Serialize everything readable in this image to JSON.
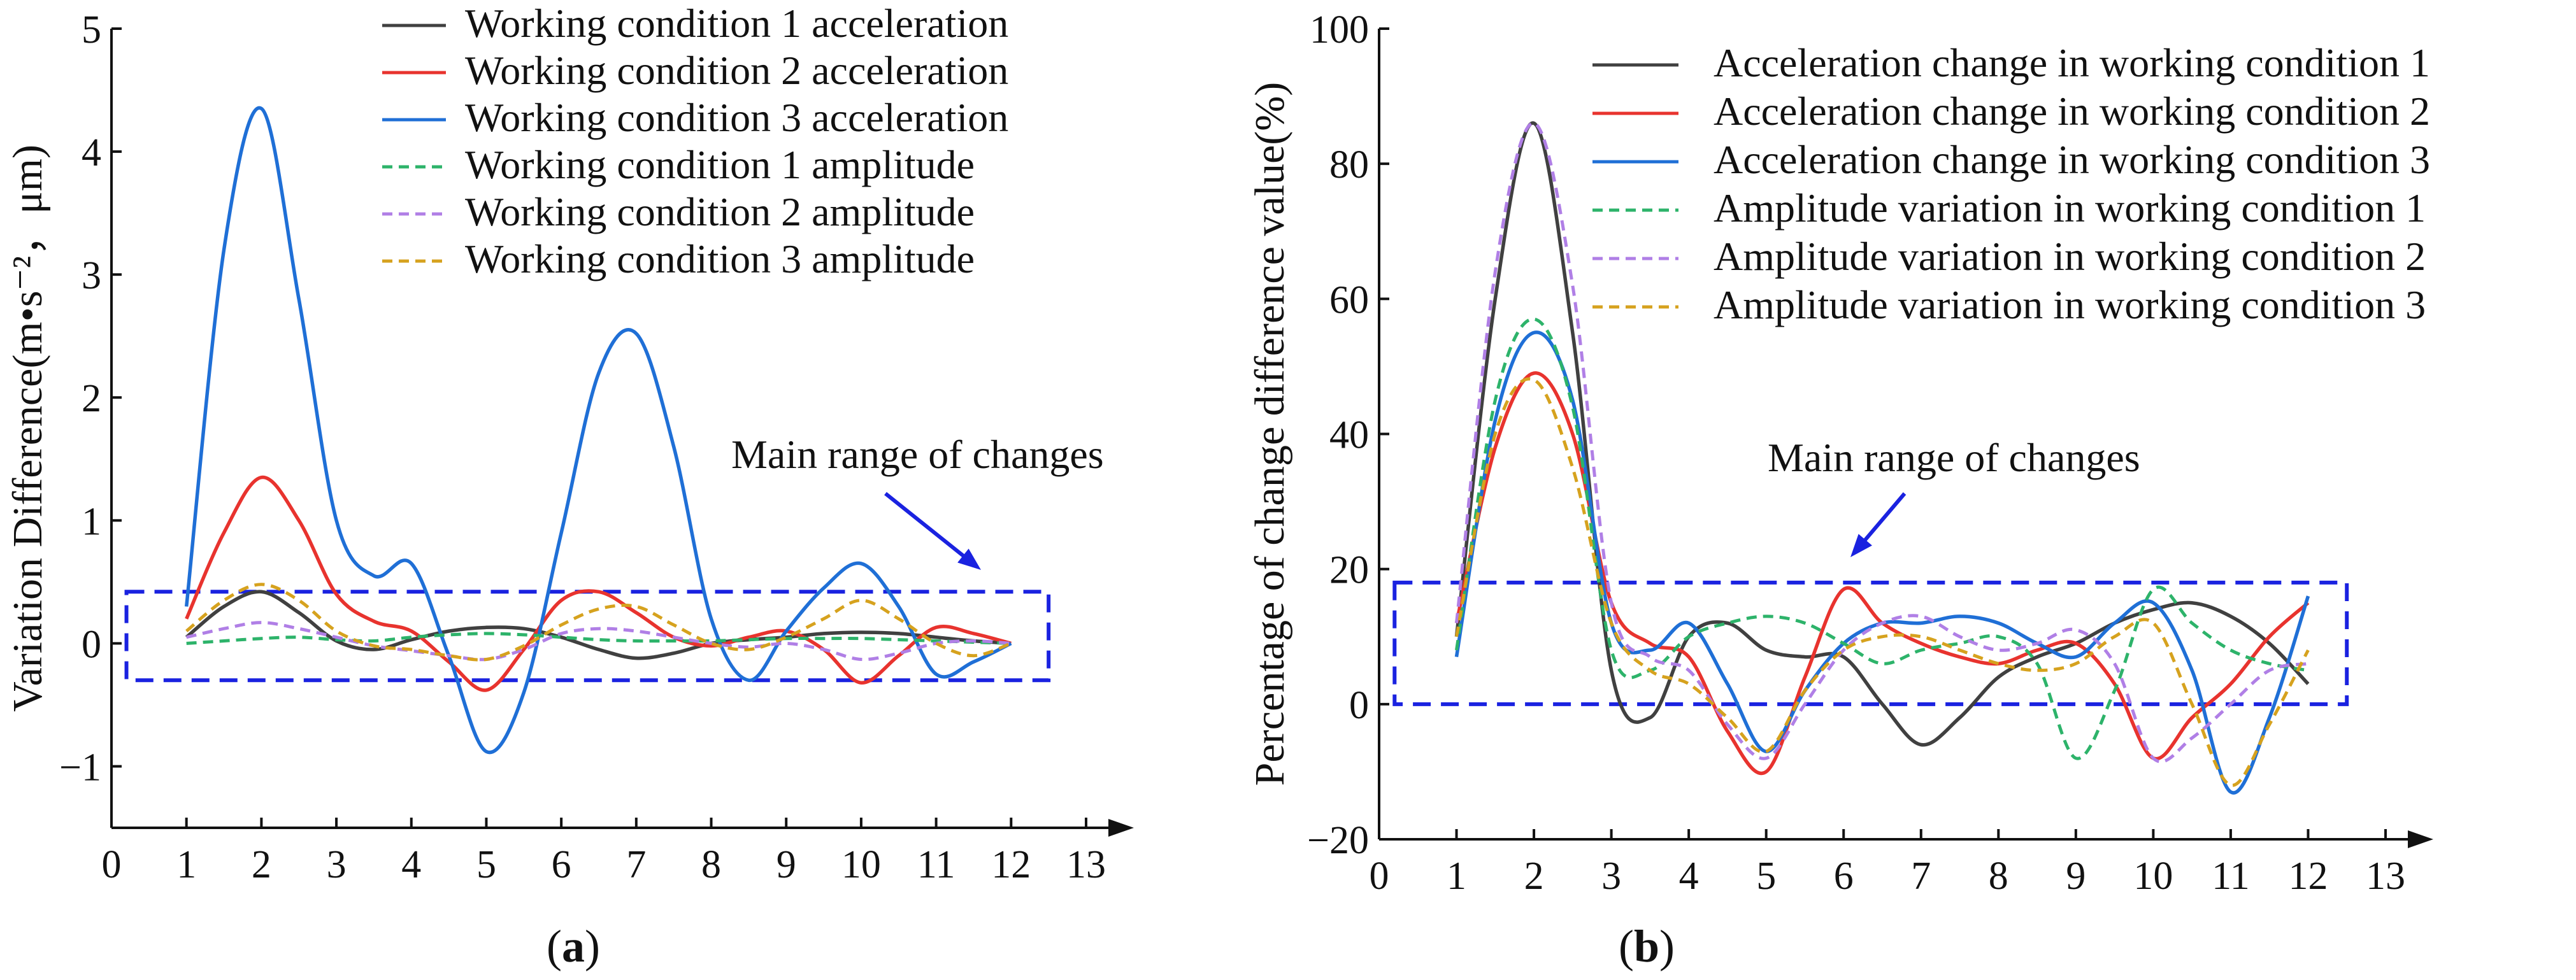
{
  "chart_data": [
    {
      "type": "line",
      "panel_label": "a",
      "ylabel": "Variation Difference(m•s⁻²，μm)",
      "xlabel": "",
      "xlim": [
        0,
        13
      ],
      "ylim": [
        -1.5,
        5
      ],
      "x_ticks": [
        0,
        1,
        2,
        3,
        4,
        5,
        6,
        7,
        8,
        9,
        10,
        11,
        12,
        13
      ],
      "y_ticks": [
        -1,
        0,
        1,
        2,
        3,
        4,
        5
      ],
      "x": [
        1,
        1.5,
        2,
        2.5,
        3,
        3.5,
        4,
        4.5,
        5,
        5.5,
        6,
        6.5,
        7,
        7.5,
        8,
        8.5,
        9,
        9.5,
        10,
        10.5,
        11,
        11.5,
        12
      ],
      "series": [
        {
          "name": "Working condition 1 acceleration",
          "color": "#404040",
          "dash": "solid",
          "values": [
            0.05,
            0.3,
            0.42,
            0.25,
            0.02,
            -0.05,
            0.03,
            0.1,
            0.13,
            0.12,
            0.05,
            -0.05,
            -0.12,
            -0.08,
            0,
            0.03,
            0.05,
            0.08,
            0.09,
            0.08,
            0.05,
            0.02,
            0.0
          ]
        },
        {
          "name": "Working condition 2 acceleration",
          "color": "#e8332e",
          "dash": "solid",
          "values": [
            0.2,
            0.9,
            1.35,
            1.0,
            0.4,
            0.18,
            0.1,
            -0.15,
            -0.38,
            -0.05,
            0.35,
            0.42,
            0.25,
            0.05,
            -0.02,
            0.05,
            0.1,
            -0.05,
            -0.32,
            -0.1,
            0.13,
            0.08,
            0.0
          ]
        },
        {
          "name": "Working condition 3 acceleration",
          "color": "#1f6fd6",
          "dash": "solid",
          "values": [
            0.3,
            3.2,
            4.35,
            2.8,
            1.0,
            0.55,
            0.65,
            -0.1,
            -0.88,
            -0.4,
            0.9,
            2.2,
            2.52,
            1.6,
            0.2,
            -0.3,
            0.1,
            0.45,
            0.65,
            0.3,
            -0.25,
            -0.15,
            0.0
          ]
        },
        {
          "name": "Working condition 1 amplitude",
          "color": "#2db36a",
          "dash": "dashed",
          "values": [
            0.0,
            0.02,
            0.04,
            0.05,
            0.03,
            0.02,
            0.05,
            0.07,
            0.08,
            0.07,
            0.05,
            0.03,
            0.02,
            0.02,
            0.02,
            0.03,
            0.04,
            0.04,
            0.04,
            0.03,
            0.02,
            0.01,
            0.0
          ]
        },
        {
          "name": "Working condition 2 amplitude",
          "color": "#b07fe6",
          "dash": "dashed",
          "values": [
            0.05,
            0.12,
            0.17,
            0.12,
            0.05,
            -0.02,
            -0.06,
            -0.1,
            -0.13,
            -0.05,
            0.08,
            0.12,
            0.1,
            0.05,
            0.0,
            -0.03,
            0.0,
            -0.05,
            -0.13,
            -0.08,
            0.0,
            0.02,
            0.0
          ]
        },
        {
          "name": "Working condition 3 amplitude",
          "color": "#d6a21e",
          "dash": "dashed",
          "values": [
            0.1,
            0.35,
            0.48,
            0.35,
            0.1,
            -0.02,
            -0.05,
            -0.1,
            -0.13,
            -0.02,
            0.15,
            0.28,
            0.3,
            0.15,
            0.0,
            -0.05,
            0.05,
            0.2,
            0.35,
            0.2,
            0.0,
            -0.1,
            0.0
          ]
        }
      ],
      "annotation": {
        "text": "Main range of changes",
        "box_x": [
          0.2,
          12.5
        ],
        "box_y": [
          -0.3,
          0.42
        ]
      },
      "legend_position": "top-right",
      "caption": {
        "before": "(",
        "label": "a",
        "after": ")"
      }
    },
    {
      "type": "line",
      "panel_label": "b",
      "ylabel": "Percentage of change difference value(%)",
      "xlabel": "",
      "xlim": [
        0,
        13
      ],
      "ylim": [
        -20,
        100
      ],
      "x_ticks": [
        0,
        1,
        2,
        3,
        4,
        5,
        6,
        7,
        8,
        9,
        10,
        11,
        12,
        13
      ],
      "y_ticks": [
        -20,
        0,
        20,
        40,
        60,
        80,
        100
      ],
      "x": [
        1,
        1.5,
        2,
        2.5,
        3,
        3.5,
        4,
        4.5,
        5,
        5.5,
        6,
        6.5,
        7,
        7.5,
        8,
        8.5,
        9,
        9.5,
        10,
        10.5,
        11,
        11.5,
        12
      ],
      "series": [
        {
          "name": "Acceleration change in working condition 1",
          "color": "#404040",
          "dash": "solid",
          "values": [
            10,
            60,
            86,
            55,
            5,
            -2,
            10,
            12,
            8,
            7,
            7,
            0,
            -6,
            -2,
            4,
            7,
            9,
            12,
            14,
            15,
            13,
            9,
            3
          ]
        },
        {
          "name": "Acceleration change in working condition 2",
          "color": "#e8332e",
          "dash": "solid",
          "values": [
            12,
            38,
            49,
            40,
            15,
            9,
            7,
            -4,
            -10,
            4,
            17,
            12,
            9,
            7,
            6,
            8,
            9,
            3,
            -8,
            -2,
            3,
            10,
            15
          ]
        },
        {
          "name": "Acceleration change in working condition 3",
          "color": "#1f6fd6",
          "dash": "solid",
          "values": [
            7,
            42,
            55,
            45,
            12,
            8,
            12,
            3,
            -7,
            2,
            9,
            12,
            12,
            13,
            12,
            9,
            7,
            12,
            15,
            5,
            -13,
            -2,
            16
          ]
        },
        {
          "name": "Amplitude variation in working condition 1",
          "color": "#2db36a",
          "dash": "dashed",
          "values": [
            8,
            45,
            57,
            44,
            8,
            5,
            10,
            12,
            13,
            12,
            9,
            6,
            8,
            9,
            10,
            6,
            -8,
            2,
            17,
            12,
            8,
            6,
            5
          ]
        },
        {
          "name": "Amplitude variation in working condition 2",
          "color": "#b07fe6",
          "dash": "dashed",
          "values": [
            12,
            64,
            86,
            62,
            15,
            7,
            5,
            -3,
            -8,
            0,
            8,
            12,
            13,
            10,
            8,
            9,
            11,
            6,
            -8,
            -5,
            0,
            5,
            6
          ]
        },
        {
          "name": "Amplitude variation in working condition 3",
          "color": "#d6a21e",
          "dash": "dashed",
          "values": [
            10,
            40,
            48,
            35,
            12,
            5,
            3,
            -2,
            -7,
            2,
            8,
            10,
            10,
            8,
            6,
            5,
            6,
            10,
            12,
            0,
            -12,
            -3,
            8
          ]
        }
      ],
      "annotation": {
        "text": "Main range of changes",
        "box_x": [
          0.2,
          12.5
        ],
        "box_y": [
          0,
          18
        ]
      },
      "legend_position": "top-right",
      "caption": {
        "before": "(",
        "label": "b",
        "after": ")"
      }
    }
  ]
}
